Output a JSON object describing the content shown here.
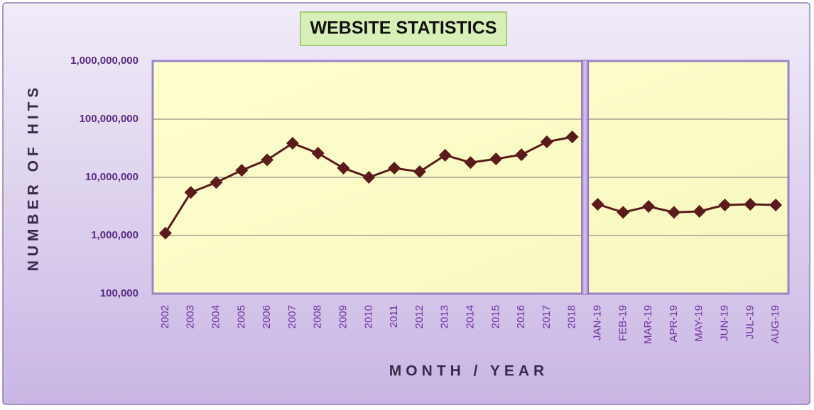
{
  "chart_data": {
    "type": "line",
    "title": "WEBSITE STATISTICS",
    "y_label": "NUMBER OF HITS",
    "x_label": "MONTH / YEAR",
    "categories": [
      "2002",
      "2003",
      "2004",
      "2005",
      "2006",
      "2007",
      "2008",
      "2009",
      "2010",
      "2011",
      "2012",
      "2013",
      "2014",
      "2015",
      "2016",
      "2017",
      "2018",
      "JAN-19",
      "FEB-19",
      "MAR-19",
      "APR-19",
      "MAY-19",
      "JUN-19",
      "JUL-19",
      "AUG-19"
    ],
    "series": [
      {
        "color": "#5b1b1b",
        "values": [
          1100000,
          5500000,
          8200000,
          13200000,
          20000000,
          38500000,
          26000000,
          14400000,
          10000000,
          14400000,
          12500000,
          24000000,
          18000000,
          20700000,
          24500000,
          40700000,
          49600000,
          null,
          null,
          null,
          null,
          null,
          null,
          null,
          null
        ]
      },
      {
        "color": "#5b1b1b",
        "values": [
          null,
          null,
          null,
          null,
          null,
          null,
          null,
          null,
          null,
          null,
          null,
          null,
          null,
          null,
          null,
          null,
          null,
          3440000,
          2500000,
          3160000,
          2500000,
          2600000,
          3350000,
          3440000,
          3350000
        ]
      }
    ],
    "log_scale": true,
    "ylim": [
      100000,
      1000000000
    ],
    "yticks": [
      {
        "value": 100000,
        "label": "100,000"
      },
      {
        "value": 1000000,
        "label": "1,000,000"
      },
      {
        "value": 10000000,
        "label": "10,000,000"
      },
      {
        "value": 100000000,
        "label": "100,000,000"
      },
      {
        "value": 1000000000,
        "label": "1,000,000,000"
      }
    ],
    "grid": true
  }
}
